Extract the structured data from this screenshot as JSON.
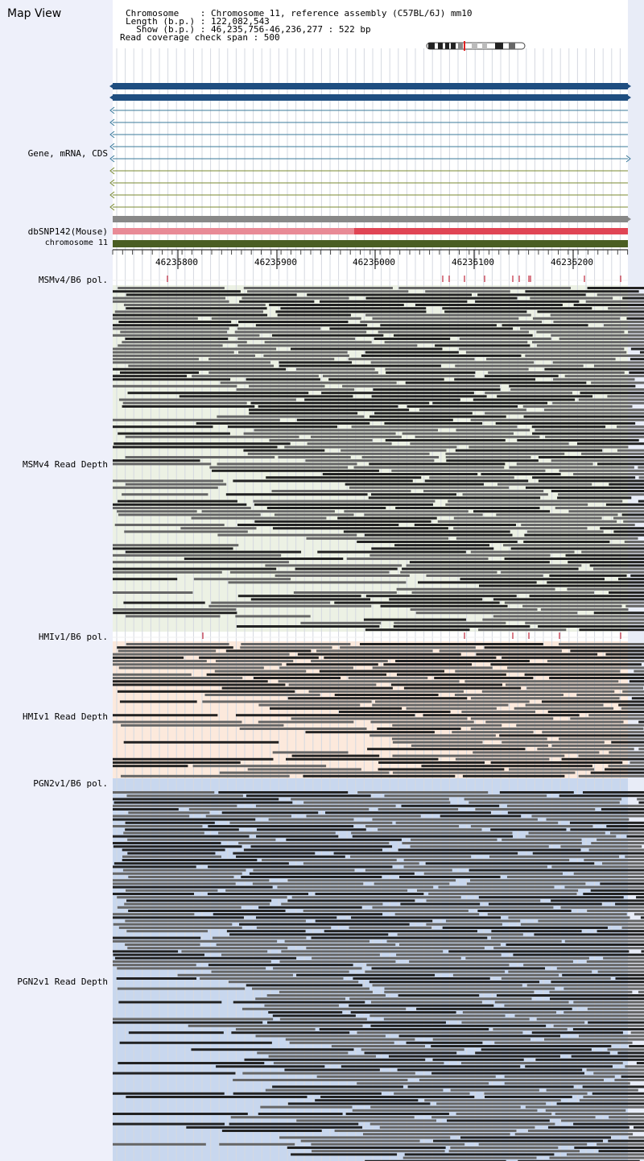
{
  "view": {
    "title": "Map View"
  },
  "header": {
    "chromosome_label": "Chromosome    : Chromosome 11, reference assembly (C57BL/6J) mm10",
    "length_label": "Length (b.p.) : 122,082,543",
    "show_label": "  Show (b.p.) : 46,235,756-46,236,277 : 522 bp",
    "coverage_label": "Read coverage check span : 500"
  },
  "tracks": {
    "gene": "Gene, mRNA, CDS",
    "dbsnp": "dbSNP142(Mouse)",
    "chromosome": "chromosome 11",
    "msm_pol": "MSMv4/B6 pol.",
    "msm_depth": "MSMv4 Read Depth",
    "hmi_pol": "HMIv1/B6 pol.",
    "hmi_depth": "HMIv1 Read Depth",
    "pgn_pol": "PGN2v1/B6 pol.",
    "pgn_depth": "PGN2v1 Read Depth"
  },
  "ruler": {
    "ticks": [
      "46235800",
      "46235900",
      "46236000",
      "46236100",
      "46236200"
    ]
  },
  "colors": {
    "gene_primary": "#1f4e80",
    "transcript_line": "#3a7a9a",
    "transcript_line_alt": "#7a8a30",
    "dbsnp_gray": "#888888",
    "dbsnp_pink": "#e88a96",
    "dbsnp_red": "#e04555",
    "chromosome": "#4a5e23",
    "msm_bg": "#ecf1e4",
    "hmi_bg": "#fce9dc",
    "pgn_bg": "#c8d7ee",
    "snp_mark": "#c0283c",
    "read_dark": "#222222",
    "read_gray": "#666666"
  }
}
